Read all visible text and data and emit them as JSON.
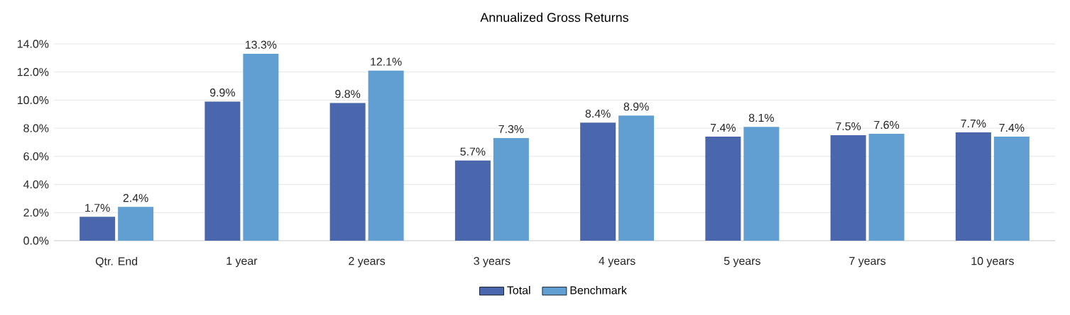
{
  "chart_data": {
    "type": "bar",
    "title": "Annualized Gross Returns",
    "categories": [
      "Qtr. End",
      "1 year",
      "2 years",
      "3 years",
      "4 years",
      "5 years",
      "7 years",
      "10 years"
    ],
    "series": [
      {
        "name": "Total",
        "color": "#4a66ad",
        "values": [
          1.7,
          9.9,
          9.8,
          5.7,
          8.4,
          7.4,
          7.5,
          7.7
        ],
        "value_labels": [
          "1.7%",
          "9.9%",
          "9.8%",
          "5.7%",
          "8.4%",
          "7.4%",
          "7.5%",
          "7.7%"
        ]
      },
      {
        "name": "Benchmark",
        "color": "#619fd3",
        "values": [
          2.4,
          13.3,
          12.1,
          7.3,
          8.9,
          8.1,
          7.6,
          7.4
        ],
        "value_labels": [
          "2.4%",
          "13.3%",
          "12.1%",
          "7.3%",
          "8.9%",
          "8.1%",
          "7.6%",
          "7.4%"
        ]
      }
    ],
    "ylim": [
      0,
      14
    ],
    "yticks": [
      {
        "value": 0,
        "label": "0.0%"
      },
      {
        "value": 2,
        "label": "2.0%"
      },
      {
        "value": 4,
        "label": "4.0%"
      },
      {
        "value": 6,
        "label": "6.0%"
      },
      {
        "value": 8,
        "label": "8.0%"
      },
      {
        "value": 10,
        "label": "10.0%"
      },
      {
        "value": 12,
        "label": "12.0%"
      },
      {
        "value": 14,
        "label": "14.0%"
      }
    ],
    "grid": "y",
    "legend": "bottom"
  }
}
